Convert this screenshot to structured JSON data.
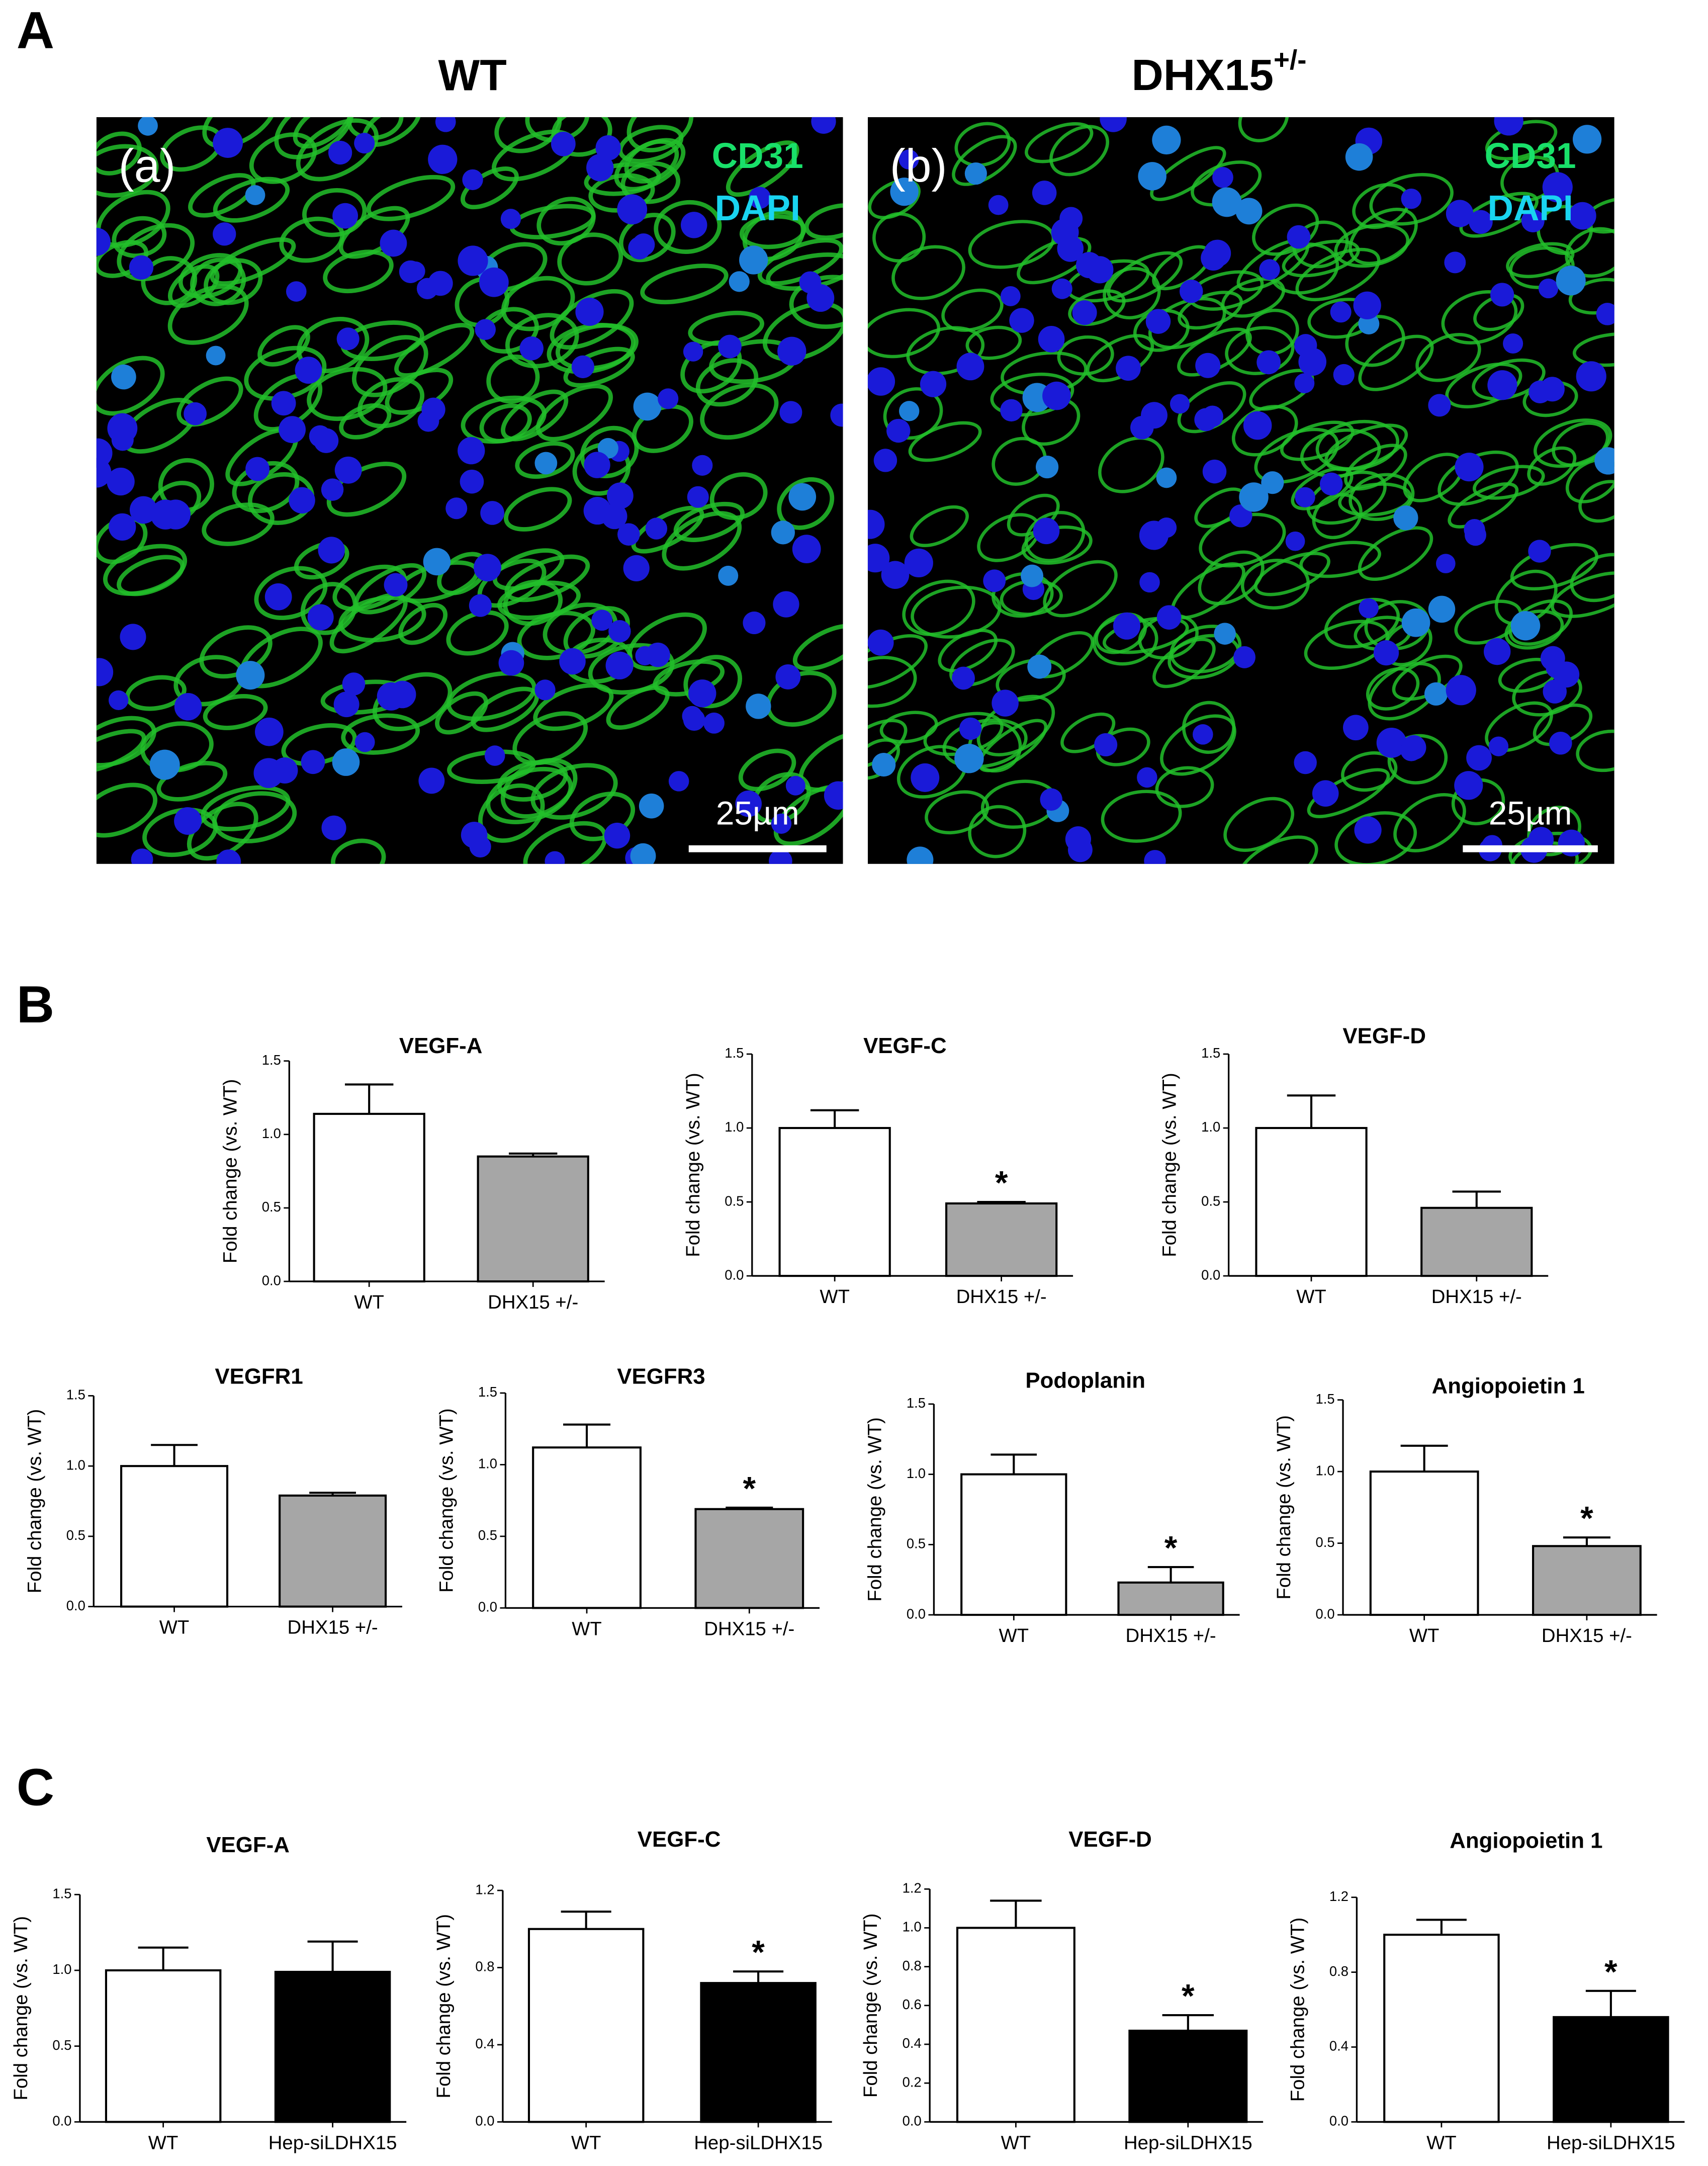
{
  "panel_labels": [
    "A",
    "B",
    "C"
  ],
  "images": [
    {
      "title": "WT",
      "label": "(a)",
      "stains": [
        "CD31",
        "DAPI"
      ],
      "scale_bar": "25µm"
    },
    {
      "title": "DHX15",
      "title_sup": "+/-",
      "label": "(b)",
      "stains": [
        "CD31",
        "DAPI"
      ],
      "scale_bar": "25µm"
    }
  ],
  "chart_data": [
    {
      "type": "bar",
      "title": "VEGF-A",
      "ylabel": "Fold change (vs. WT)",
      "categories": [
        "WT",
        "DHX15 +/-"
      ],
      "values": [
        1.14,
        0.85
      ],
      "errors": [
        0.2,
        0.02
      ],
      "colors": [
        "#ffffff",
        "#a6a6a6"
      ],
      "ylim": [
        0,
        1.5
      ],
      "yticks": [
        {
          "value": 0,
          "label": "0.0"
        },
        0.5,
        {
          "value": 1,
          "label": "1.0"
        },
        1.5
      ]
    },
    {
      "type": "bar",
      "title": "VEGF-C",
      "ylabel": "Fold change (vs. WT)",
      "categories": [
        "WT",
        "DHX15 +/-"
      ],
      "values": [
        1.0,
        0.49
      ],
      "errors": [
        0.12,
        0.01
      ],
      "colors": [
        "#ffffff",
        "#a6a6a6"
      ],
      "annotations": [
        {
          "index": 1,
          "text": "*"
        }
      ],
      "ylim": [
        0,
        1.5
      ],
      "yticks": [
        {
          "value": 0,
          "label": "0.0"
        },
        0.5,
        {
          "value": 1,
          "label": "1.0"
        },
        1.5
      ]
    },
    {
      "type": "bar",
      "title": "VEGF-D",
      "ylabel": "Fold change (vs. WT)",
      "categories": [
        "WT",
        "DHX15 +/-"
      ],
      "values": [
        1.0,
        0.46
      ],
      "errors": [
        0.22,
        0.11
      ],
      "colors": [
        "#ffffff",
        "#a6a6a6"
      ],
      "ylim": [
        0,
        1.5
      ],
      "yticks": [
        {
          "value": 0,
          "label": "0.0"
        },
        0.5,
        {
          "value": 1,
          "label": "1.0"
        },
        1.5
      ]
    },
    {
      "type": "bar",
      "title": "VEGFR1",
      "ylabel": "Fold change (vs. WT)",
      "categories": [
        "WT",
        "DHX15 +/-"
      ],
      "values": [
        1.0,
        0.79
      ],
      "errors": [
        0.15,
        0.02
      ],
      "colors": [
        "#ffffff",
        "#a6a6a6"
      ],
      "ylim": [
        0,
        1.5
      ],
      "yticks": [
        {
          "value": 0,
          "label": "0.0"
        },
        0.5,
        {
          "value": 1,
          "label": "1.0"
        },
        1.5
      ]
    },
    {
      "type": "bar",
      "title": "VEGFR3",
      "ylabel": "Fold change (vs. WT)",
      "categories": [
        "WT",
        "DHX15 +/-"
      ],
      "values": [
        1.12,
        0.69
      ],
      "errors": [
        0.16,
        0.01
      ],
      "colors": [
        "#ffffff",
        "#a6a6a6"
      ],
      "annotations": [
        {
          "index": 1,
          "text": "*"
        }
      ],
      "ylim": [
        0,
        1.5
      ],
      "yticks": [
        {
          "value": 0,
          "label": "0.0"
        },
        0.5,
        {
          "value": 1,
          "label": "1.0"
        },
        1.5
      ]
    },
    {
      "type": "bar",
      "title": "Podoplanin",
      "ylabel": "Fold change (vs. WT)",
      "categories": [
        "WT",
        "DHX15 +/-"
      ],
      "values": [
        1.0,
        0.23
      ],
      "errors": [
        0.14,
        0.11
      ],
      "colors": [
        "#ffffff",
        "#a6a6a6"
      ],
      "annotations": [
        {
          "index": 1,
          "text": "*"
        }
      ],
      "ylim": [
        0,
        1.5
      ],
      "yticks": [
        {
          "value": 0,
          "label": "0.0"
        },
        0.5,
        {
          "value": 1,
          "label": "1.0"
        },
        1.5
      ]
    },
    {
      "type": "bar",
      "title": "Angiopoietin 1",
      "ylabel": "Fold change (vs. WT)",
      "categories": [
        "WT",
        "DHX15 +/-"
      ],
      "values": [
        1.0,
        0.48
      ],
      "errors": [
        0.18,
        0.06
      ],
      "colors": [
        "#ffffff",
        "#a6a6a6"
      ],
      "annotations": [
        {
          "index": 1,
          "text": "*"
        }
      ],
      "ylim": [
        0,
        1.5
      ],
      "yticks": [
        {
          "value": 0,
          "label": "0.0"
        },
        0.5,
        {
          "value": 1,
          "label": "1.0"
        },
        1.5
      ]
    },
    {
      "type": "bar",
      "title": "VEGF-A",
      "ylabel": "Fold change (vs. WT)",
      "categories": [
        "WT",
        "Hep-siLDHX15"
      ],
      "values": [
        1.0,
        0.99
      ],
      "errors": [
        0.15,
        0.2
      ],
      "colors": [
        "#ffffff",
        "#000000"
      ],
      "ylim": [
        0,
        1.5
      ],
      "yticks": [
        {
          "value": 0,
          "label": "0.0"
        },
        0.5,
        {
          "value": 1,
          "label": "1.0"
        },
        1.5
      ]
    },
    {
      "type": "bar",
      "title": "VEGF-C",
      "ylabel": "Fold change (vs. WT)",
      "categories": [
        "WT",
        "Hep-siLDHX15"
      ],
      "values": [
        1.0,
        0.72
      ],
      "errors": [
        0.09,
        0.06
      ],
      "colors": [
        "#ffffff",
        "#000000"
      ],
      "annotations": [
        {
          "index": 1,
          "text": "*"
        }
      ],
      "ylim": [
        0,
        1.2
      ],
      "yticks": [
        {
          "value": 0,
          "label": "0.0"
        },
        0.4,
        0.8,
        1.2
      ]
    },
    {
      "type": "bar",
      "title": "VEGF-D",
      "ylabel": "Fold change (vs. WT)",
      "categories": [
        "WT",
        "Hep-siLDHX15"
      ],
      "values": [
        1.0,
        0.47
      ],
      "errors": [
        0.14,
        0.08
      ],
      "colors": [
        "#ffffff",
        "#000000"
      ],
      "annotations": [
        {
          "index": 1,
          "text": "*"
        }
      ],
      "ylim": [
        0,
        1.2
      ],
      "yticks": [
        {
          "value": 0,
          "label": "0.0"
        },
        0.2,
        0.4,
        0.6,
        0.8,
        {
          "value": 1,
          "label": "1.0"
        },
        1.2
      ]
    },
    {
      "type": "bar",
      "title": "Angiopoietin 1",
      "ylabel": "Fold change (vs. WT)",
      "categories": [
        "WT",
        "Hep-siLDHX15"
      ],
      "values": [
        1.0,
        0.56
      ],
      "errors": [
        0.08,
        0.14
      ],
      "colors": [
        "#ffffff",
        "#000000"
      ],
      "annotations": [
        {
          "index": 1,
          "text": "*"
        }
      ],
      "ylim": [
        0,
        1.2
      ],
      "yticks": [
        {
          "value": 0,
          "label": "0.0"
        },
        0.4,
        0.8,
        1.2
      ]
    }
  ]
}
